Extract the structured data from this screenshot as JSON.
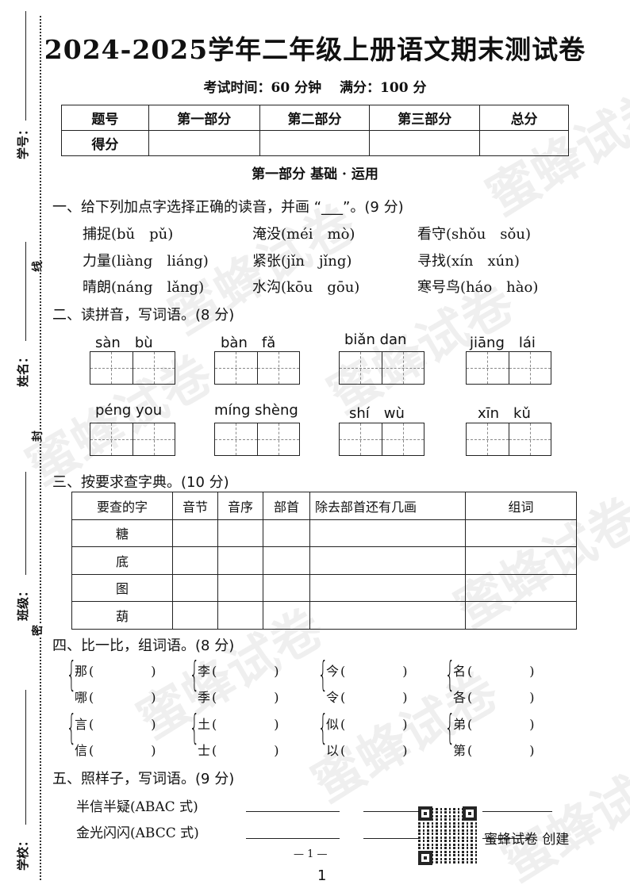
{
  "watermark": "蜜蜂试卷",
  "binding_margin": {
    "fields": [
      "学号：",
      "姓名：",
      "班级：",
      "学校："
    ],
    "seal_marks": [
      "线",
      "封",
      "密"
    ]
  },
  "header": {
    "title": "2024-2025学年二年级上册语文期末测试卷",
    "subtitle": "考试时间：60 分钟　 满分：100 分"
  },
  "score_table": {
    "headers": [
      "题号",
      "第一部分",
      "第二部分",
      "第三部分",
      "总分"
    ],
    "row_label": "得分"
  },
  "part1_title": "第一部分  基础 · 运用",
  "q1": {
    "heading": "一、给下列加点字选择正确的读音，并画 “___”。(9 分)",
    "items": [
      [
        "捕捉(bǔ　pǔ)",
        "淹没(méi　mò)",
        "看守(shǒu　sǒu)"
      ],
      [
        "力量(liàng　liáng)",
        "紧张(jǐn　jǐng)",
        "寻找(xín　xún)"
      ],
      [
        "晴朗(náng　lǎng)",
        "水沟(kōu　gōu)",
        "寒号鸟(háo　hào)"
      ]
    ]
  },
  "q2": {
    "heading": "二、读拼音，写词语。(8 分)",
    "pinyin": [
      "sàn　bù",
      "bàn　fǎ",
      "biǎn dan",
      "jiāng　lái",
      "péng you",
      "míng shèng",
      "shí　wù",
      "xīn　kǔ"
    ]
  },
  "q3": {
    "heading": "三、按要求查字典。(10 分)",
    "headers": [
      "要查的字",
      "音节",
      "音序",
      "部首",
      "除去部首还有几画",
      "组词"
    ],
    "chars": [
      "糖",
      "底",
      "图",
      "葫"
    ]
  },
  "q4": {
    "heading": "四、比一比，组词语。(8 分)",
    "pairs": [
      [
        "那",
        "哪"
      ],
      [
        "李",
        "季"
      ],
      [
        "今",
        "令"
      ],
      [
        "名",
        "各"
      ],
      [
        "言",
        "信"
      ],
      [
        "土",
        "士"
      ],
      [
        "似",
        "以"
      ],
      [
        "弟",
        "第"
      ]
    ],
    "blank": "(　　　)"
  },
  "q5": {
    "heading": "五、照样子，写词语。(9 分)",
    "items": [
      "半信半疑(ABAC 式)",
      "金光闪闪(ABCC 式)"
    ]
  },
  "qr_caption": "蜜蜂试卷 创建",
  "footer": {
    "page_mark": "— 1 —",
    "page_number": "1"
  }
}
